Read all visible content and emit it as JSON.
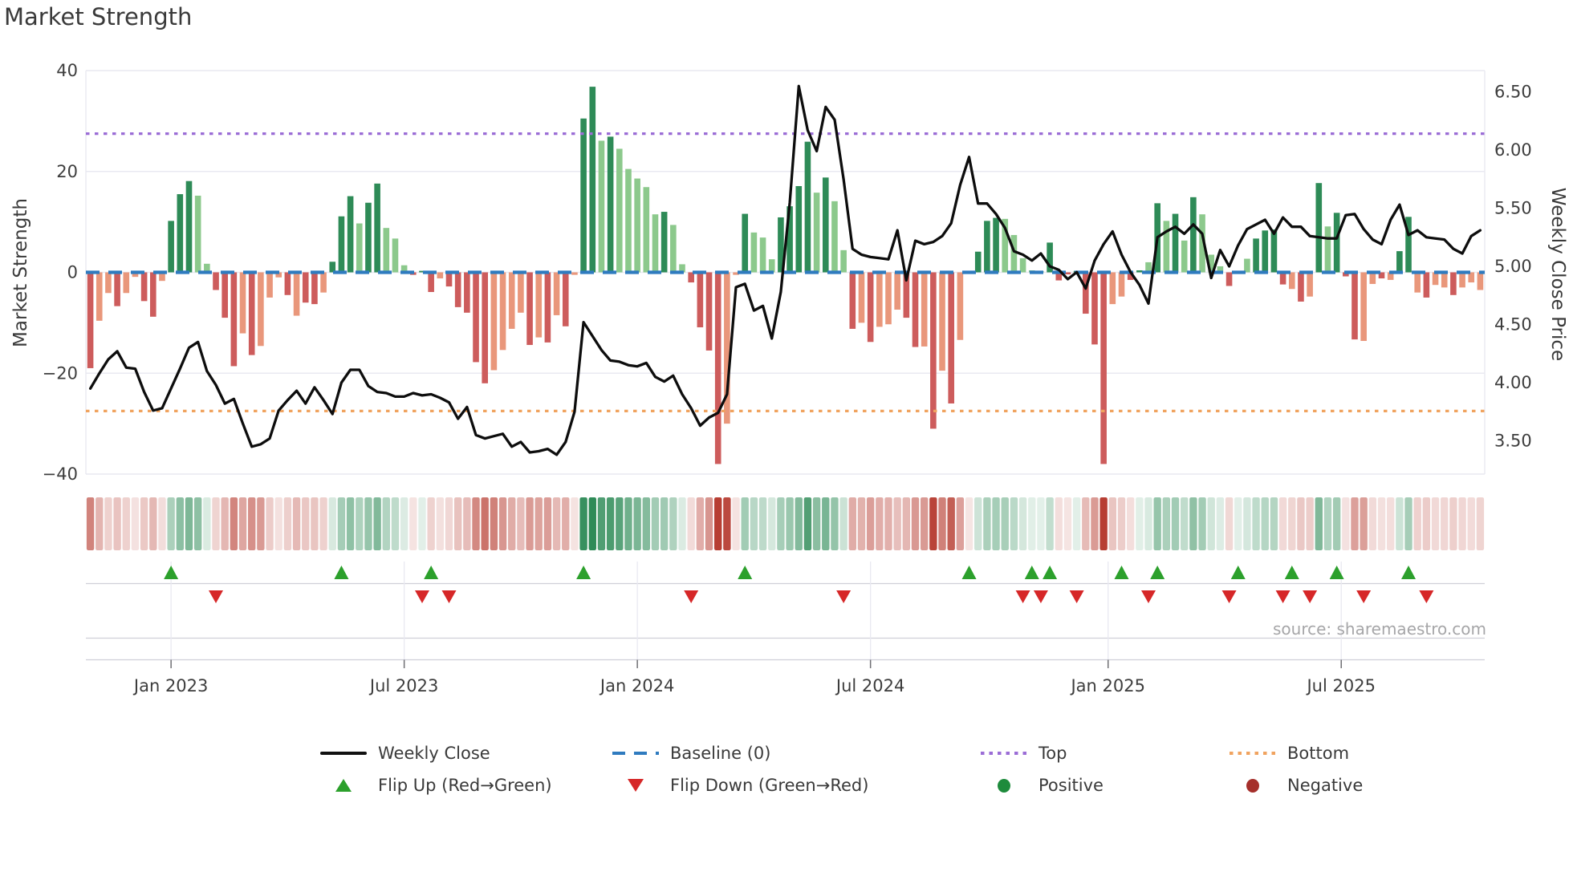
{
  "title": "Market Strength",
  "source": "source: sharemaestro.com",
  "left_axis": {
    "label": "Market Strength",
    "ticks": [
      "40",
      "20",
      "0",
      "−20",
      "−40"
    ],
    "tick_values": [
      40,
      20,
      0,
      -20,
      -40
    ]
  },
  "right_axis": {
    "label": "Weekly Close Price",
    "ticks": [
      "6.50",
      "6.00",
      "5.50",
      "5.00",
      "4.50",
      "4.00",
      "3.50"
    ],
    "tick_values": [
      6.5,
      6.0,
      5.5,
      5.0,
      4.5,
      4.0,
      3.5
    ]
  },
  "x_axis": {
    "ticks": [
      "Jan 2023",
      "Jul 2023",
      "Jan 2024",
      "Jul 2024",
      "Jan 2025",
      "Jul 2025"
    ],
    "tick_weeks": [
      9,
      35,
      61,
      87,
      113.5,
      139.5
    ]
  },
  "legend": {
    "weekly_close": "Weekly Close",
    "baseline": "Baseline (0)",
    "top": "Top",
    "bottom": "Bottom",
    "flip_up": "Flip Up (Red→Green)",
    "flip_down": "Flip Down (Green→Red)",
    "positive": "Positive",
    "negative": "Negative"
  },
  "colors": {
    "bar_pos_dark": "#2e8b57",
    "bar_pos_light": "#8cc98c",
    "bar_neg_dark": "#cd5c5c",
    "bar_neg_light": "#e9977b",
    "heat_pos": "#2e8b57",
    "heat_neg": "#b73e33",
    "line": "#0d0d0d",
    "baseline": "#2f7bbf",
    "top": "#9b6dd6",
    "bottom": "#f0a35f",
    "flip_up": "#2ca02c",
    "flip_down": "#d62728",
    "positive": "#1e8b3c",
    "negative": "#a52f2b",
    "grid": "#e9e9f1",
    "panel_line": "#cfcfd8",
    "tick": "#6f6f74",
    "text": "#3d3d3d",
    "muted": "#a6a6a8"
  },
  "chart_data": {
    "type": "bar",
    "title": "Market Strength",
    "ylabel": "Market Strength",
    "y2label": "Weekly Close Price",
    "ylim": [
      -40,
      40
    ],
    "y2lim": [
      3.2,
      6.7
    ],
    "baseline": 0,
    "top_threshold": 27.5,
    "bottom_threshold": -27.5,
    "weeks": 156,
    "strength": [
      [
        -19,
        "D"
      ],
      [
        -9.6,
        "L"
      ],
      [
        -4.1,
        "L"
      ],
      [
        -6.7,
        "D"
      ],
      [
        -4.1,
        "L"
      ],
      [
        -0.9,
        "L"
      ],
      [
        -5.7,
        "D"
      ],
      [
        -8.8,
        "D"
      ],
      [
        -1.7,
        "L"
      ],
      [
        10.2,
        "D"
      ],
      [
        15.5,
        "D"
      ],
      [
        18.1,
        "D"
      ],
      [
        15.2,
        "L"
      ],
      [
        1.7,
        "L"
      ],
      [
        -3.5,
        "D"
      ],
      [
        -9,
        "D"
      ],
      [
        -18.6,
        "D"
      ],
      [
        -12.1,
        "L"
      ],
      [
        -16.4,
        "D"
      ],
      [
        -14.6,
        "L"
      ],
      [
        -5,
        "L"
      ],
      [
        -1,
        "L"
      ],
      [
        -4.5,
        "D"
      ],
      [
        -8.6,
        "L"
      ],
      [
        -6,
        "D"
      ],
      [
        -6.3,
        "D"
      ],
      [
        -4,
        "L"
      ],
      [
        2.1,
        "D"
      ],
      [
        11.1,
        "D"
      ],
      [
        15.1,
        "D"
      ],
      [
        9.7,
        "L"
      ],
      [
        13.8,
        "D"
      ],
      [
        17.6,
        "D"
      ],
      [
        8.8,
        "L"
      ],
      [
        6.7,
        "L"
      ],
      [
        1.4,
        "L"
      ],
      [
        -0.5,
        "D"
      ],
      [
        0.3,
        "D"
      ],
      [
        -3.9,
        "D"
      ],
      [
        -1.2,
        "L"
      ],
      [
        -2.8,
        "D"
      ],
      [
        -6.9,
        "D"
      ],
      [
        -8,
        "D"
      ],
      [
        -17.8,
        "D"
      ],
      [
        -22,
        "D"
      ],
      [
        -19.4,
        "L"
      ],
      [
        -15.4,
        "L"
      ],
      [
        -11.2,
        "L"
      ],
      [
        -8,
        "L"
      ],
      [
        -14.4,
        "D"
      ],
      [
        -12.9,
        "L"
      ],
      [
        -13.9,
        "D"
      ],
      [
        -8.5,
        "L"
      ],
      [
        -10.7,
        "D"
      ],
      [
        -0.5,
        "L"
      ],
      [
        30.5,
        "D"
      ],
      [
        36.8,
        "D"
      ],
      [
        26.1,
        "L"
      ],
      [
        26.9,
        "D"
      ],
      [
        24.5,
        "L"
      ],
      [
        20.5,
        "L"
      ],
      [
        18.6,
        "L"
      ],
      [
        16.9,
        "L"
      ],
      [
        11.5,
        "L"
      ],
      [
        12,
        "D"
      ],
      [
        9.4,
        "L"
      ],
      [
        1.6,
        "L"
      ],
      [
        -2,
        "D"
      ],
      [
        -10.9,
        "D"
      ],
      [
        -15.5,
        "D"
      ],
      [
        -38,
        "D"
      ],
      [
        -30,
        "L"
      ],
      [
        -0.5,
        "L"
      ],
      [
        11.6,
        "D"
      ],
      [
        7.9,
        "L"
      ],
      [
        6.9,
        "L"
      ],
      [
        2.6,
        "L"
      ],
      [
        10.9,
        "D"
      ],
      [
        13.1,
        "D"
      ],
      [
        17.1,
        "D"
      ],
      [
        25.9,
        "D"
      ],
      [
        15.8,
        "L"
      ],
      [
        18.8,
        "D"
      ],
      [
        14.1,
        "L"
      ],
      [
        4.4,
        "L"
      ],
      [
        -11.2,
        "D"
      ],
      [
        -10,
        "L"
      ],
      [
        -13.8,
        "D"
      ],
      [
        -10.8,
        "L"
      ],
      [
        -10.3,
        "L"
      ],
      [
        -7.4,
        "L"
      ],
      [
        -9,
        "D"
      ],
      [
        -14.8,
        "D"
      ],
      [
        -14.7,
        "L"
      ],
      [
        -31,
        "D"
      ],
      [
        -19.5,
        "L"
      ],
      [
        -26,
        "D"
      ],
      [
        -13.4,
        "L"
      ],
      [
        -0.3,
        "L"
      ],
      [
        4.1,
        "D"
      ],
      [
        10.2,
        "D"
      ],
      [
        10.8,
        "D"
      ],
      [
        10.6,
        "L"
      ],
      [
        7.4,
        "L"
      ],
      [
        2.8,
        "L"
      ],
      [
        0.4,
        "L"
      ],
      [
        0.2,
        "L"
      ],
      [
        5.9,
        "D"
      ],
      [
        -1.6,
        "D"
      ],
      [
        -0.4,
        "D"
      ],
      [
        0.3,
        "D"
      ],
      [
        -8.2,
        "D"
      ],
      [
        -14.3,
        "D"
      ],
      [
        -38,
        "D"
      ],
      [
        -6.3,
        "L"
      ],
      [
        -4.8,
        "L"
      ],
      [
        -1.5,
        "D"
      ],
      [
        0.4,
        "D"
      ],
      [
        2,
        "L"
      ],
      [
        13.7,
        "D"
      ],
      [
        10.2,
        "L"
      ],
      [
        11.6,
        "D"
      ],
      [
        6.3,
        "L"
      ],
      [
        14.9,
        "D"
      ],
      [
        11.5,
        "L"
      ],
      [
        3.5,
        "L"
      ],
      [
        1.2,
        "L"
      ],
      [
        -2.7,
        "D"
      ],
      [
        0.3,
        "L"
      ],
      [
        2.7,
        "L"
      ],
      [
        6.7,
        "D"
      ],
      [
        8.3,
        "D"
      ],
      [
        8.5,
        "D"
      ],
      [
        -2.4,
        "D"
      ],
      [
        -3.3,
        "L"
      ],
      [
        -5.8,
        "D"
      ],
      [
        -4.8,
        "L"
      ],
      [
        17.7,
        "D"
      ],
      [
        9.1,
        "L"
      ],
      [
        11.8,
        "D"
      ],
      [
        -0.8,
        "D"
      ],
      [
        -13.3,
        "D"
      ],
      [
        -13.6,
        "L"
      ],
      [
        -2.3,
        "L"
      ],
      [
        -1.2,
        "D"
      ],
      [
        -1.5,
        "L"
      ],
      [
        4.2,
        "D"
      ],
      [
        11,
        "D"
      ],
      [
        -4,
        "L"
      ],
      [
        -5,
        "D"
      ],
      [
        -2.5,
        "L"
      ],
      [
        -3,
        "L"
      ],
      [
        -4.5,
        "D"
      ],
      [
        -3,
        "L"
      ],
      [
        -2,
        "L"
      ],
      [
        -3.5,
        "L"
      ]
    ],
    "price": [
      3.95,
      4.08,
      4.2,
      4.27,
      4.13,
      4.12,
      3.92,
      3.76,
      3.78,
      3.95,
      4.12,
      4.3,
      4.35,
      4.1,
      3.98,
      3.82,
      3.86,
      3.65,
      3.45,
      3.47,
      3.52,
      3.76,
      3.85,
      3.93,
      3.82,
      3.96,
      3.85,
      3.73,
      4.0,
      4.11,
      4.11,
      3.97,
      3.92,
      3.91,
      3.88,
      3.88,
      3.91,
      3.89,
      3.9,
      3.87,
      3.83,
      3.69,
      3.79,
      3.55,
      3.52,
      3.54,
      3.56,
      3.45,
      3.49,
      3.4,
      3.41,
      3.43,
      3.38,
      3.49,
      3.75,
      4.52,
      4.4,
      4.28,
      4.19,
      4.18,
      4.15,
      4.14,
      4.17,
      4.05,
      4.01,
      4.06,
      3.9,
      3.78,
      3.63,
      3.7,
      3.74,
      3.9,
      4.82,
      4.85,
      4.62,
      4.66,
      4.38,
      4.78,
      5.55,
      6.55,
      6.17,
      5.99,
      6.37,
      6.26,
      5.75,
      5.15,
      5.1,
      5.08,
      5.07,
      5.06,
      5.31,
      4.88,
      5.22,
      5.19,
      5.21,
      5.26,
      5.37,
      5.7,
      5.94,
      5.54,
      5.54,
      5.45,
      5.33,
      5.13,
      5.1,
      5.05,
      5.11,
      5.0,
      4.97,
      4.89,
      4.95,
      4.81,
      5.05,
      5.19,
      5.3,
      5.1,
      4.95,
      4.84,
      4.68,
      5.25,
      5.3,
      5.34,
      5.28,
      5.36,
      5.28,
      4.9,
      5.14,
      5.0,
      5.18,
      5.32,
      5.36,
      5.4,
      5.28,
      5.42,
      5.34,
      5.34,
      5.26,
      5.25,
      5.24,
      5.24,
      5.44,
      5.45,
      5.32,
      5.23,
      5.19,
      5.4,
      5.53,
      5.27,
      5.31,
      5.25,
      5.24,
      5.23,
      5.15,
      5.11,
      5.26,
      5.31
    ],
    "flip_up_weeks": [
      9,
      28,
      38,
      55,
      73,
      98,
      105,
      107,
      115,
      119,
      128,
      134,
      139,
      147
    ],
    "flip_down_weeks": [
      14,
      37,
      40,
      67,
      84,
      104,
      106,
      110,
      118,
      127,
      133,
      136,
      142,
      149
    ]
  }
}
